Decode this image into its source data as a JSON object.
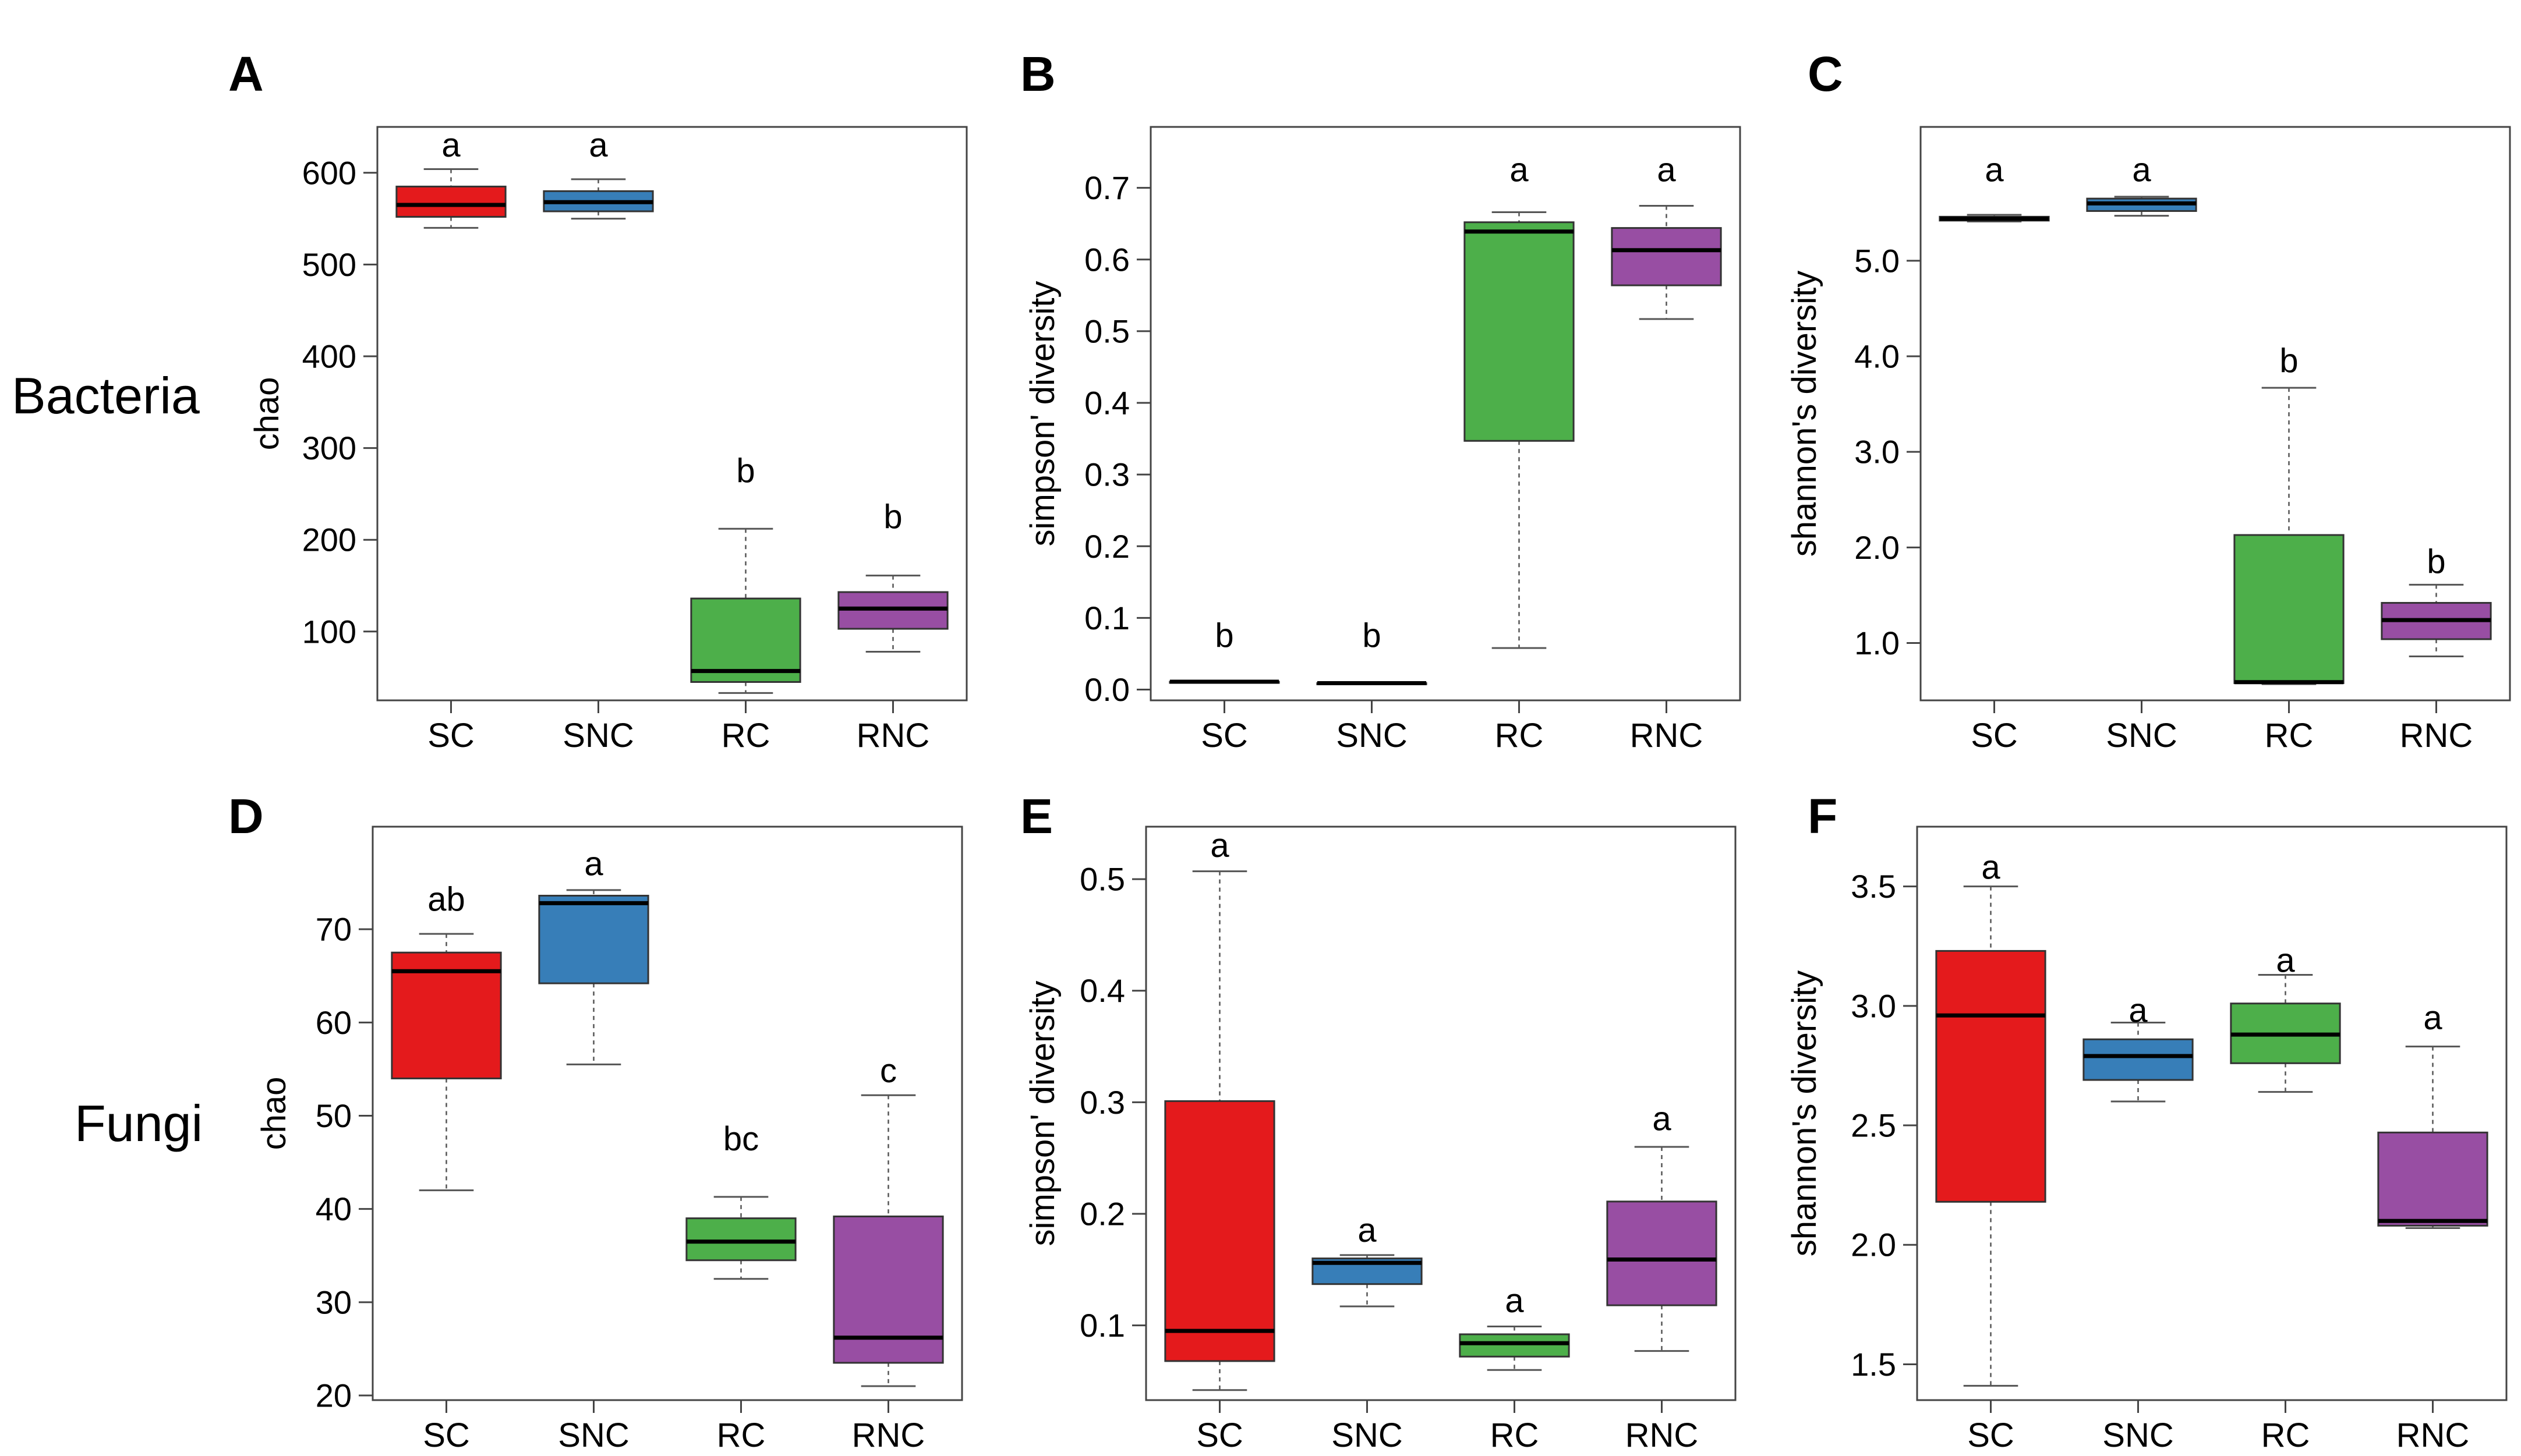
{
  "row_labels": [
    "Bacteria",
    "Fungi"
  ],
  "colors": {
    "SC": "#e41a1c",
    "SNC": "#377eb8",
    "RC": "#4daf4a",
    "RNC": "#984ea3"
  },
  "chart_data": [
    {
      "panel": "A",
      "type": "boxplot",
      "ylabel": "chao",
      "ylim": [
        25,
        650
      ],
      "yticks": [
        100,
        200,
        300,
        400,
        500,
        600
      ],
      "yticklabels": [
        "100",
        "200",
        "300",
        "400",
        "500",
        "600"
      ],
      "categories": [
        "SC",
        "SNC",
        "RC",
        "RNC"
      ],
      "boxes": [
        {
          "min": 540,
          "q1": 552,
          "median": 565,
          "q3": 585,
          "max": 604
        },
        {
          "min": 550,
          "q1": 558,
          "median": 568,
          "q3": 580,
          "max": 593
        },
        {
          "min": 33,
          "q1": 45,
          "median": 57,
          "q3": 136,
          "max": 212
        },
        {
          "min": 78,
          "q1": 103,
          "median": 125,
          "q3": 143,
          "max": 161
        }
      ],
      "letters": [
        "a",
        "a",
        "b",
        "b"
      ],
      "letter_y": [
        630,
        630,
        275,
        225
      ]
    },
    {
      "panel": "B",
      "type": "boxplot",
      "ylabel": "simpson' diversity",
      "ylim": [
        -0.015,
        0.785
      ],
      "yticks": [
        0.0,
        0.1,
        0.2,
        0.3,
        0.4,
        0.5,
        0.6,
        0.7
      ],
      "yticklabels": [
        "0.0",
        "0.1",
        "0.2",
        "0.3",
        "0.4",
        "0.5",
        "0.6",
        "0.7"
      ],
      "categories": [
        "SC",
        "SNC",
        "RC",
        "RNC"
      ],
      "boxes": [
        {
          "min": 0.011,
          "q1": 0.011,
          "median": 0.011,
          "q3": 0.011,
          "max": 0.011
        },
        {
          "min": 0.009,
          "q1": 0.009,
          "median": 0.009,
          "q3": 0.009,
          "max": 0.009
        },
        {
          "min": 0.058,
          "q1": 0.347,
          "median": 0.639,
          "q3": 0.652,
          "max": 0.666
        },
        {
          "min": 0.517,
          "q1": 0.564,
          "median": 0.613,
          "q3": 0.644,
          "max": 0.675
        }
      ],
      "letters": [
        "b",
        "b",
        "a",
        "a"
      ],
      "letter_y": [
        0.075,
        0.075,
        0.725,
        0.725
      ]
    },
    {
      "panel": "C",
      "type": "boxplot",
      "ylabel": "shannon's diversity",
      "ylim": [
        0.4,
        6.4
      ],
      "yticks": [
        1.0,
        2.0,
        3.0,
        4.0,
        5.0
      ],
      "yticklabels": [
        "1.0",
        "2.0",
        "3.0",
        "4.0",
        "5.0"
      ],
      "categories": [
        "SC",
        "SNC",
        "RC",
        "RNC"
      ],
      "boxes": [
        {
          "min": 5.41,
          "q1": 5.42,
          "median": 5.44,
          "q3": 5.46,
          "max": 5.48
        },
        {
          "min": 5.47,
          "q1": 5.52,
          "median": 5.6,
          "q3": 5.65,
          "max": 5.67
        },
        {
          "min": 0.57,
          "q1": 0.58,
          "median": 0.59,
          "q3": 2.13,
          "max": 3.67
        },
        {
          "min": 0.86,
          "q1": 1.04,
          "median": 1.24,
          "q3": 1.42,
          "max": 1.61
        }
      ],
      "letters": [
        "a",
        "a",
        "b",
        "b"
      ],
      "letter_y": [
        5.95,
        5.95,
        3.95,
        1.85
      ]
    },
    {
      "panel": "D",
      "type": "boxplot",
      "ylabel": "chao",
      "ylim": [
        19.5,
        81
      ],
      "yticks": [
        20,
        30,
        40,
        50,
        60,
        70
      ],
      "yticklabels": [
        "20",
        "30",
        "40",
        "50",
        "60",
        "70"
      ],
      "categories": [
        "SC",
        "SNC",
        "RC",
        "RNC"
      ],
      "boxes": [
        {
          "min": 42.0,
          "q1": 54.0,
          "median": 65.5,
          "q3": 67.5,
          "max": 69.5
        },
        {
          "min": 55.5,
          "q1": 64.2,
          "median": 72.8,
          "q3": 73.6,
          "max": 74.2
        },
        {
          "min": 32.5,
          "q1": 34.5,
          "median": 36.5,
          "q3": 39.0,
          "max": 41.3
        },
        {
          "min": 21.0,
          "q1": 23.5,
          "median": 26.2,
          "q3": 39.2,
          "max": 52.2
        }
      ],
      "letters": [
        "ab",
        "a",
        "bc",
        "c"
      ],
      "letter_y": [
        73.2,
        77.0,
        47.5,
        54.8
      ]
    },
    {
      "panel": "E",
      "type": "boxplot",
      "ylabel": "simpson' diversity",
      "ylim": [
        0.033,
        0.547
      ],
      "yticks": [
        0.1,
        0.2,
        0.3,
        0.4,
        0.5
      ],
      "yticklabels": [
        "0.1",
        "0.2",
        "0.3",
        "0.4",
        "0.5"
      ],
      "categories": [
        "SC",
        "SNC",
        "RC",
        "RNC"
      ],
      "boxes": [
        {
          "min": 0.042,
          "q1": 0.068,
          "median": 0.095,
          "q3": 0.301,
          "max": 0.507
        },
        {
          "min": 0.117,
          "q1": 0.137,
          "median": 0.156,
          "q3": 0.16,
          "max": 0.163
        },
        {
          "min": 0.06,
          "q1": 0.072,
          "median": 0.084,
          "q3": 0.092,
          "max": 0.099
        },
        {
          "min": 0.077,
          "q1": 0.118,
          "median": 0.159,
          "q3": 0.211,
          "max": 0.26
        }
      ],
      "letters": [
        "a",
        "a",
        "a",
        "a"
      ],
      "letter_y": [
        0.53,
        0.185,
        0.122,
        0.285
      ]
    },
    {
      "panel": "F",
      "type": "boxplot",
      "ylabel": "shannon's diversity",
      "ylim": [
        1.35,
        3.75
      ],
      "yticks": [
        1.5,
        2.0,
        2.5,
        3.0,
        3.5
      ],
      "yticklabels": [
        "1.5",
        "2.0",
        "2.5",
        "3.0",
        "3.5"
      ],
      "categories": [
        "SC",
        "SNC",
        "RC",
        "RNC"
      ],
      "boxes": [
        {
          "min": 1.41,
          "q1": 2.18,
          "median": 2.96,
          "q3": 3.23,
          "max": 3.5
        },
        {
          "min": 2.6,
          "q1": 2.69,
          "median": 2.79,
          "q3": 2.86,
          "max": 2.93
        },
        {
          "min": 2.64,
          "q1": 2.76,
          "median": 2.88,
          "q3": 3.01,
          "max": 3.13
        },
        {
          "min": 2.07,
          "q1": 2.08,
          "median": 2.1,
          "q3": 2.47,
          "max": 2.83
        }
      ],
      "letters": [
        "a",
        "a",
        "a",
        "a"
      ],
      "letter_y": [
        3.58,
        2.98,
        3.19,
        2.95
      ]
    }
  ]
}
